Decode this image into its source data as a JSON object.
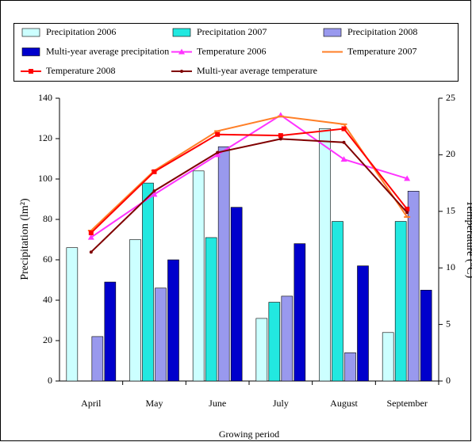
{
  "chart_data": {
    "type": "bar",
    "x_label": "Growing period",
    "y_label": "Precipitation (lm²)",
    "y2_label": "Temperature (⁰C)",
    "categories": [
      "April",
      "May",
      "June",
      "July",
      "August",
      "September"
    ],
    "ylim": [
      0,
      140
    ],
    "yticks": [
      0,
      20,
      40,
      60,
      80,
      100,
      120,
      140
    ],
    "y2lim": [
      0,
      25
    ],
    "y2ticks": [
      0,
      5,
      10,
      15,
      20,
      25
    ],
    "series": [
      {
        "name": "Precipitation 2006",
        "type": "bar",
        "color": "#ccffff",
        "values": [
          66,
          70,
          104,
          31,
          125,
          24
        ]
      },
      {
        "name": "Precipitation 2007",
        "type": "bar",
        "color": "#22e8e0",
        "values": [
          null,
          98,
          71,
          39,
          79,
          79
        ]
      },
      {
        "name": "Precipitation 2008",
        "type": "bar",
        "color": "#9999ee",
        "values": [
          22,
          46,
          116,
          42,
          14,
          94
        ]
      },
      {
        "name": "Multi-year average precipitation",
        "type": "bar",
        "color": "#0000cc",
        "values": [
          49,
          60,
          86,
          68,
          57,
          45
        ]
      },
      {
        "name": "Temperature 2006",
        "type": "line",
        "axis": "y2",
        "marker": "triangle",
        "color": "#ff33ff",
        "values": [
          12.7,
          16.5,
          20.0,
          23.5,
          19.6,
          17.9
        ]
      },
      {
        "name": "Temperature 2007",
        "type": "line",
        "axis": "y2",
        "marker": "dash",
        "color": "#ff7f27",
        "values": [
          13.3,
          18.6,
          22.1,
          23.4,
          22.7,
          14.5
        ]
      },
      {
        "name": "Temperature 2008",
        "type": "line",
        "axis": "y2",
        "marker": "square",
        "color": "#ff0000",
        "values": [
          13.1,
          18.5,
          21.8,
          21.7,
          22.3,
          15.2
        ]
      },
      {
        "name": "Multi-year average temperature",
        "type": "line",
        "axis": "y2",
        "marker": "dot",
        "color": "#800000",
        "values": [
          11.4,
          16.8,
          20.2,
          21.4,
          21.1,
          14.9
        ]
      }
    ]
  }
}
